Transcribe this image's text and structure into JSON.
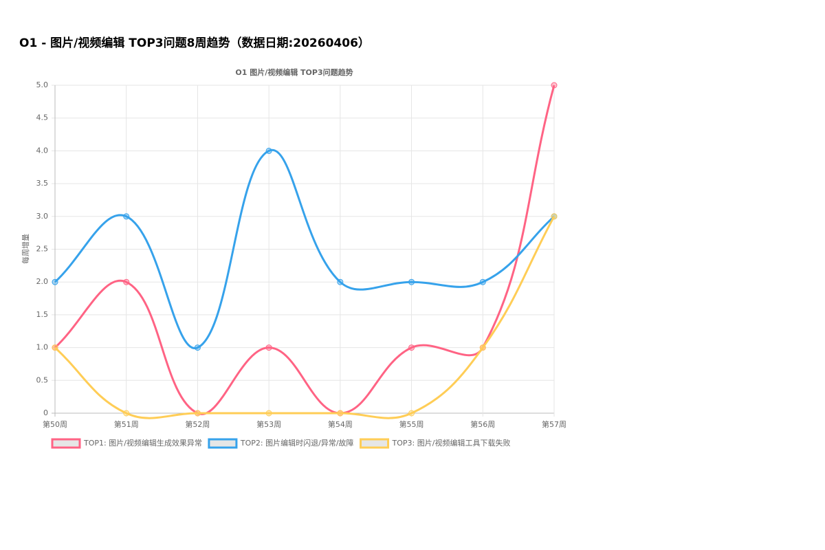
{
  "page_title": "O1 - 图片/视频编辑 TOP3问题8周趋势（数据日期:20260406）",
  "chart_data": {
    "type": "line",
    "title": "O1 图片/视频编辑 TOP3问题趋势",
    "y_label": "每周增量",
    "categories": [
      "第50周",
      "第51周",
      "第52周",
      "第53周",
      "第54周",
      "第55周",
      "第56周",
      "第57周"
    ],
    "series": [
      {
        "name": "TOP1: 图片/视频编辑生成效果异常",
        "color": "#ff6384",
        "values": [
          1,
          2,
          0,
          1,
          0,
          1,
          1,
          5
        ]
      },
      {
        "name": "TOP2: 图片编辑时闪退/异常/故障",
        "color": "#36a2eb",
        "values": [
          2,
          3,
          1,
          4,
          2,
          2,
          2,
          3
        ]
      },
      {
        "name": "TOP3: 图片/视频编辑工具下载失败",
        "color": "#ffcd56",
        "values": [
          1,
          0,
          0,
          0,
          0,
          0,
          1,
          3
        ]
      }
    ],
    "ylim": [
      0,
      5
    ],
    "yticks": [
      0,
      0.5,
      {
        "value": 1,
        "label": "1.0"
      },
      1.5,
      {
        "value": 2,
        "label": "2.0"
      },
      2.5,
      {
        "value": 3,
        "label": "3.0"
      },
      3.5,
      {
        "value": 4,
        "label": "4.0"
      },
      4.5,
      {
        "value": 5,
        "label": "5.0"
      }
    ],
    "grid": true,
    "legend": "bottom"
  }
}
